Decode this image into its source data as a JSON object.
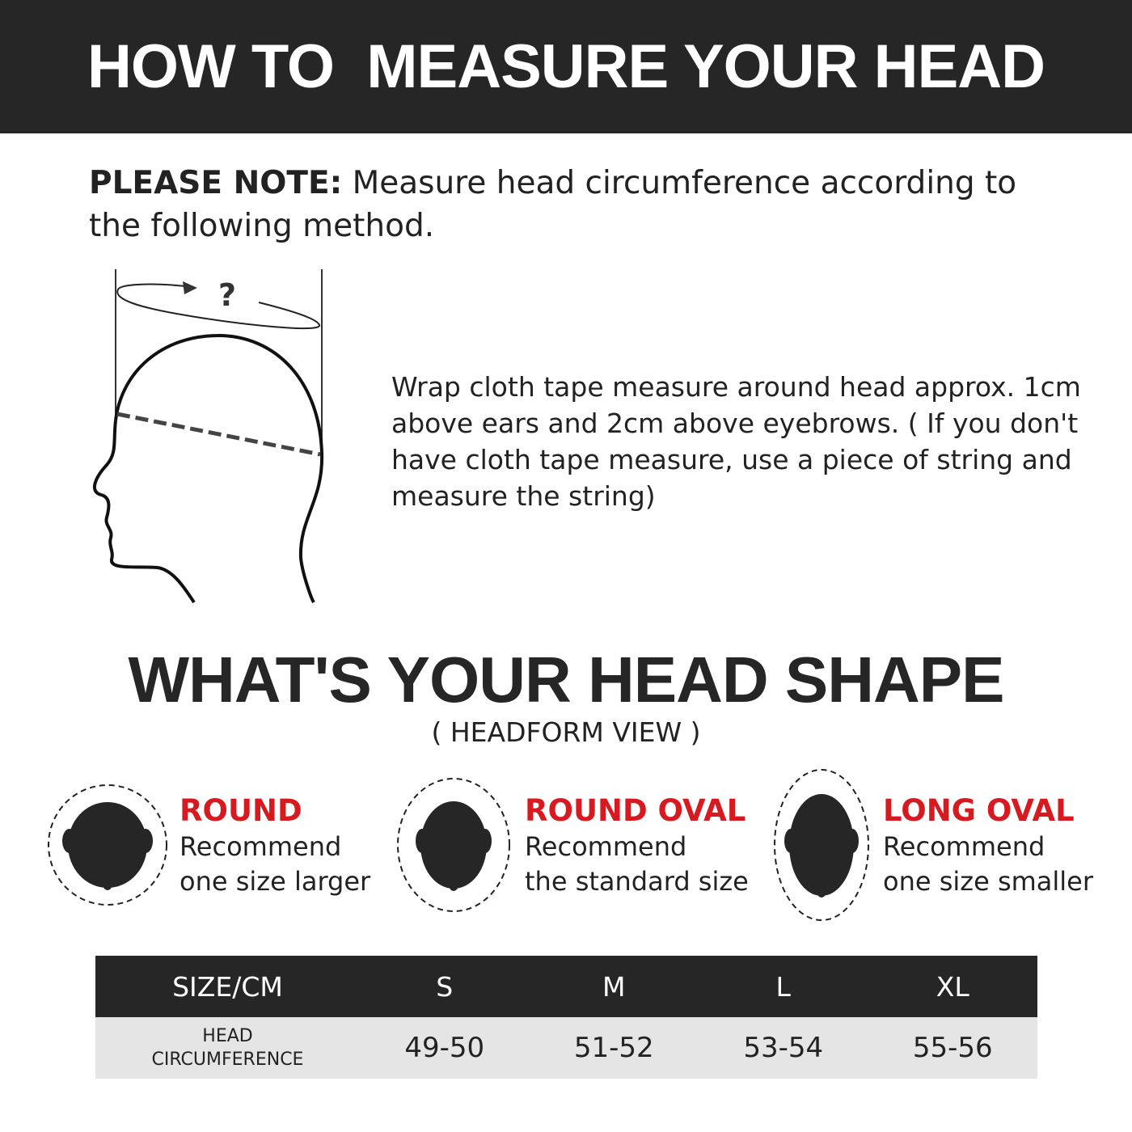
{
  "header": {
    "title": "HOW TO  MEASURE YOUR HEAD"
  },
  "note": {
    "label": "PLEASE NOTE:",
    "text": " Measure head circumference according to the following method."
  },
  "diagram": {
    "question_mark": "?"
  },
  "instructions": "Wrap cloth tape measure around head approx. 1cm above ears and 2cm above eyebrows. ( If you don't have cloth tape measure, use a piece of string and measure the string)",
  "head_shape": {
    "title": "WHAT'S YOUR HEAD SHAPE",
    "subtitle": "( HEADFORM VIEW )",
    "shapes": [
      {
        "name": "ROUND",
        "line1": "Recommend",
        "line2": "one size larger"
      },
      {
        "name": "ROUND OVAL",
        "line1": "Recommend",
        "line2": "the standard size"
      },
      {
        "name": "LONG OVAL",
        "line1": "Recommend",
        "line2": "one size smaller"
      }
    ],
    "accent_color": "#d71920"
  },
  "size_table": {
    "headers": [
      "SIZE/CM",
      "S",
      "M",
      "L",
      "XL"
    ],
    "row_label_1": "HEAD",
    "row_label_2": "CIRCUMFERENCE",
    "values": [
      "49-50",
      "51-52",
      "53-54",
      "55-56"
    ]
  }
}
